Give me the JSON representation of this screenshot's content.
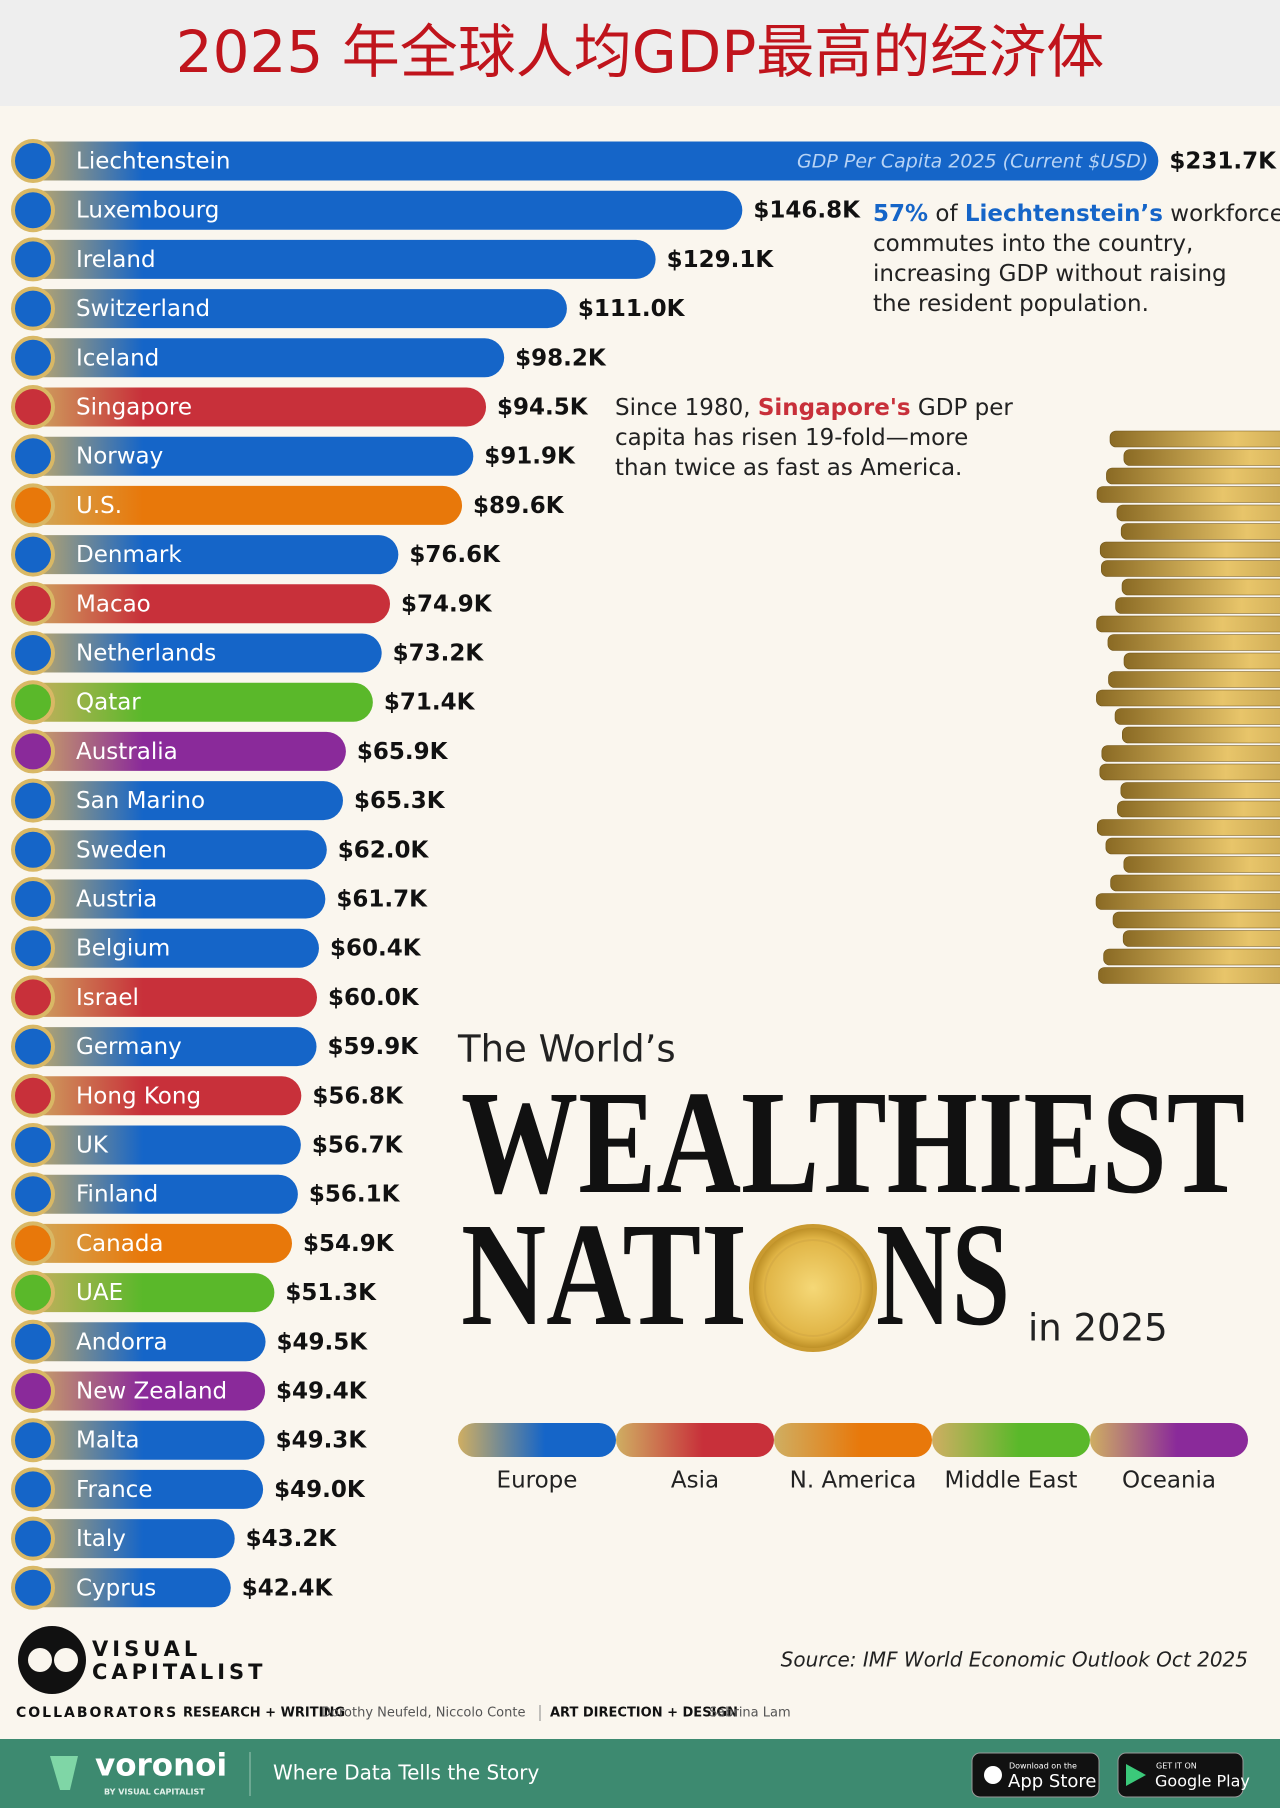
{
  "header": {
    "title": "2025 年全球人均GDP最高的经济体"
  },
  "chart_data": {
    "type": "bar",
    "orientation": "horizontal",
    "bar_note": "GDP Per Capita 2025 (Current $USD)",
    "categories": [
      "Liechtenstein",
      "Luxembourg",
      "Ireland",
      "Switzerland",
      "Iceland",
      "Singapore",
      "Norway",
      "U.S.",
      "Denmark",
      "Macao",
      "Netherlands",
      "Qatar",
      "Australia",
      "San Marino",
      "Sweden",
      "Austria",
      "Belgium",
      "Israel",
      "Germany",
      "Hong Kong",
      "UK",
      "Finland",
      "Canada",
      "UAE",
      "Andorra",
      "New Zealand",
      "Malta",
      "France",
      "Italy",
      "Cyprus"
    ],
    "values": [
      231.7,
      146.8,
      129.1,
      111.0,
      98.2,
      94.5,
      91.9,
      89.6,
      76.6,
      74.9,
      73.2,
      71.4,
      65.9,
      65.3,
      62.0,
      61.7,
      60.4,
      60.0,
      59.9,
      56.8,
      56.7,
      56.1,
      54.9,
      51.3,
      49.5,
      49.4,
      49.3,
      49.0,
      43.2,
      42.4
    ],
    "value_labels": [
      "$231.7K",
      "$146.8K",
      "$129.1K",
      "$111.0K",
      "$98.2K",
      "$94.5K",
      "$91.9K",
      "$89.6K",
      "$76.6K",
      "$74.9K",
      "$73.2K",
      "$71.4K",
      "$65.9K",
      "$65.3K",
      "$62.0K",
      "$61.7K",
      "$60.4K",
      "$60.0K",
      "$59.9K",
      "$56.8K",
      "$56.7K",
      "$56.1K",
      "$54.9K",
      "$51.3K",
      "$49.5K",
      "$49.4K",
      "$49.3K",
      "$49.0K",
      "$43.2K",
      "$42.4K"
    ],
    "colors": [
      "#1565c8",
      "#1565c8",
      "#1565c8",
      "#1565c8",
      "#1565c8",
      "#c8303a",
      "#1565c8",
      "#e8780a",
      "#1565c8",
      "#c8303a",
      "#1565c8",
      "#5ab82a",
      "#8a2a9a",
      "#1565c8",
      "#1565c8",
      "#1565c8",
      "#1565c8",
      "#c8303a",
      "#1565c8",
      "#c8303a",
      "#1565c8",
      "#1565c8",
      "#e8780a",
      "#5ab82a",
      "#1565c8",
      "#8a2a9a",
      "#1565c8",
      "#1565c8",
      "#1565c8",
      "#1565c8"
    ],
    "legend": [
      {
        "name": "Europe",
        "color": "#1565c8"
      },
      {
        "name": "Asia",
        "color": "#c8303a"
      },
      {
        "name": "N. America",
        "color": "#e8780a"
      },
      {
        "name": "Middle East",
        "color": "#5ab82a"
      },
      {
        "name": "Oceania",
        "color": "#8a2a9a"
      }
    ],
    "annotations": [
      {
        "lines": [
          [
            {
              "text": "57%",
              "color": "#1565c8"
            },
            {
              "text": " of "
            },
            {
              "text": "Liechtenstein’s",
              "color": "#1565c8"
            },
            {
              "text": " workforce"
            }
          ],
          [
            {
              "text": "commutes into the country,"
            }
          ],
          [
            {
              "text": "increasing GDP without raising"
            }
          ],
          [
            {
              "text": "the resident population."
            }
          ]
        ]
      },
      {
        "lines": [
          [
            {
              "text": "Since 1980, "
            },
            {
              "text": "Singapore's",
              "color": "#c8303a"
            },
            {
              "text": " GDP per"
            }
          ],
          [
            {
              "text": "capita has risen 19-fold—more"
            }
          ],
          [
            {
              "text": "than twice as fast as America."
            }
          ]
        ]
      }
    ],
    "headline": {
      "kicker": "The World’s",
      "line1": "WEALTHIEST",
      "line2a": "NATI",
      "line2b": "NS",
      "suffix": "in 2025"
    },
    "source": "Source: IMF World Economic Outlook Oct 2025"
  },
  "credits": {
    "brand": [
      "VISUAL",
      "CAPITALIST"
    ],
    "collaborators": "COLLABORATORS",
    "research_label": "RESEARCH + WRITING",
    "research": "Dorothy Neufeld, Niccolo Conte",
    "design_label": "ART DIRECTION + DESIGN",
    "design": "Sabrina Lam"
  },
  "footer": {
    "logo": "voronoi",
    "logo_sub": "BY VISUAL CAPITALIST",
    "tagline": "Where Data Tells the Story",
    "apple_small": "Download on the",
    "apple": "App Store",
    "google_small": "GET IT ON",
    "google": "Google Play"
  }
}
